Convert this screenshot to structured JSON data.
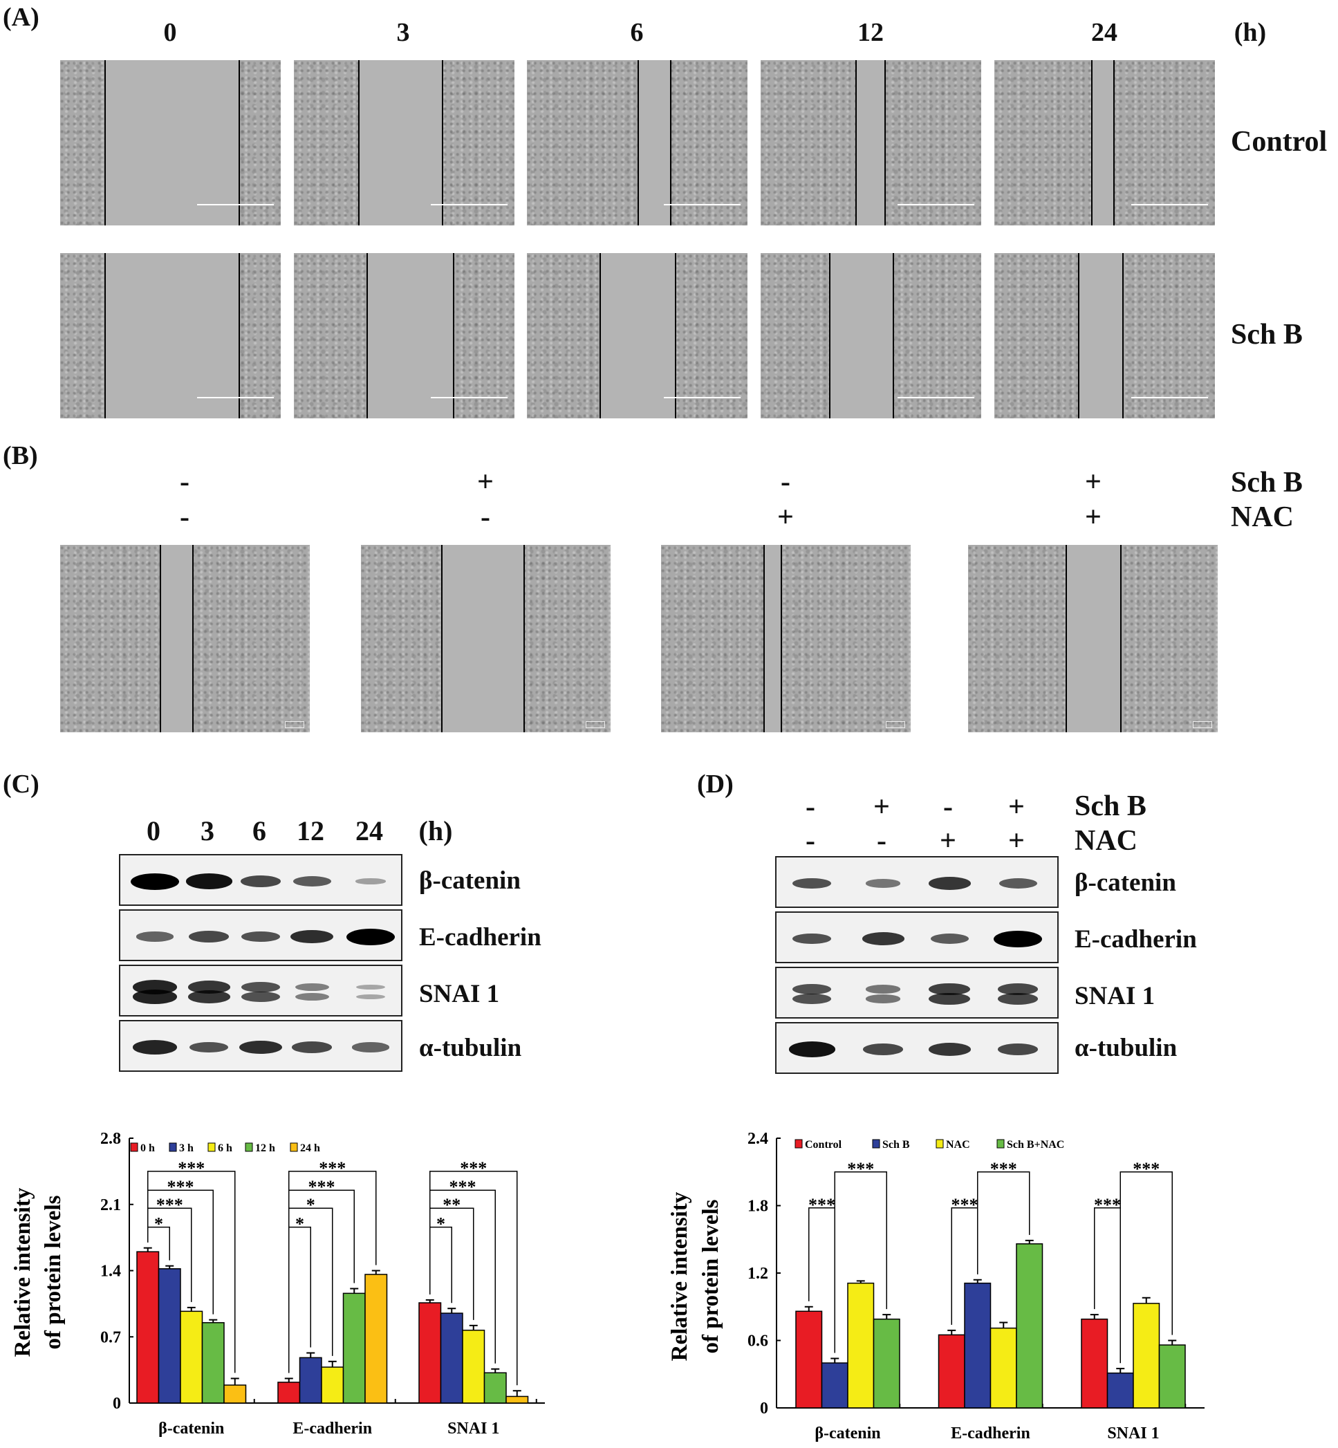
{
  "panelA": {
    "label": "(A)",
    "time_headers": [
      "0",
      "3",
      "6",
      "12",
      "24"
    ],
    "unit": "(h)",
    "rows": [
      "Control",
      "Sch B"
    ]
  },
  "panelB": {
    "label": "(B)",
    "row_labels": [
      "Sch B",
      "NAC"
    ],
    "sch_b_signs": [
      "-",
      "+",
      "-",
      "+"
    ],
    "nac_signs": [
      "-",
      "-",
      "+",
      "+"
    ]
  },
  "panelC": {
    "label": "(C)",
    "lanes": [
      "0",
      "3",
      "6",
      "12",
      "24"
    ],
    "unit": "(h)",
    "proteins": [
      "β-catenin",
      "E-cadherin",
      "SNAI 1",
      "α-tubulin"
    ]
  },
  "panelD": {
    "label": "(D)",
    "row_labels": [
      "Sch B",
      "NAC"
    ],
    "sch_b_signs": [
      "-",
      "+",
      "-",
      "+"
    ],
    "nac_signs": [
      "-",
      "-",
      "+",
      "+"
    ],
    "proteins": [
      "β-catenin",
      "E-cadherin",
      "SNAI 1",
      "α-tubulin"
    ]
  },
  "colors": {
    "red": "#e81c24",
    "blue": "#2e3f99",
    "yellow": "#f5ec15",
    "green": "#67bb45",
    "orange": "#fbbf14"
  },
  "chart_data": [
    {
      "type": "bar",
      "title": "",
      "ylabel": [
        "Relative intensity",
        "of protein levels"
      ],
      "xlabel": "",
      "ylim": [
        0,
        2.8
      ],
      "yticks": [
        "0",
        "0.7",
        "1.4",
        "2.1",
        "2.8"
      ],
      "grid": false,
      "legend": "top-left",
      "categories": [
        "β-catenin",
        "E-cadherin",
        "SNAI 1"
      ],
      "series": [
        {
          "name": "0 h",
          "color": "#e81c24",
          "values": [
            1.6,
            0.22,
            1.06
          ],
          "errors": [
            0.04,
            0.04,
            0.03
          ]
        },
        {
          "name": "3 h",
          "color": "#2e3f99",
          "values": [
            1.42,
            0.48,
            0.95
          ],
          "errors": [
            0.03,
            0.05,
            0.05
          ]
        },
        {
          "name": "6 h",
          "color": "#f5ec15",
          "values": [
            0.97,
            0.38,
            0.77
          ],
          "errors": [
            0.04,
            0.06,
            0.05
          ]
        },
        {
          "name": "12 h",
          "color": "#67bb45",
          "values": [
            0.85,
            1.16,
            0.32
          ],
          "errors": [
            0.03,
            0.05,
            0.04
          ]
        },
        {
          "name": "24 h",
          "color": "#fbbf14",
          "values": [
            0.19,
            1.36,
            0.07
          ],
          "errors": [
            0.07,
            0.04,
            0.06
          ]
        }
      ],
      "significance": [
        {
          "group": 0,
          "pairs": [
            [
              0,
              1,
              1.86,
              "*"
            ],
            [
              0,
              2,
              2.06,
              "***"
            ],
            [
              0,
              3,
              2.25,
              "***"
            ],
            [
              0,
              4,
              2.45,
              "***"
            ]
          ]
        },
        {
          "group": 1,
          "pairs": [
            [
              0,
              1,
              1.86,
              "*"
            ],
            [
              0,
              2,
              2.06,
              "*"
            ],
            [
              0,
              3,
              2.25,
              "***"
            ],
            [
              0,
              4,
              2.45,
              "***"
            ]
          ]
        },
        {
          "group": 2,
          "pairs": [
            [
              0,
              1,
              1.86,
              "*"
            ],
            [
              0,
              2,
              2.06,
              "**"
            ],
            [
              0,
              3,
              2.25,
              "***"
            ],
            [
              0,
              4,
              2.45,
              "***"
            ]
          ]
        }
      ]
    },
    {
      "type": "bar",
      "title": "",
      "ylabel": [
        "Relative intensity",
        "of protein levels"
      ],
      "xlabel": "",
      "ylim": [
        0,
        2.4
      ],
      "yticks": [
        "0",
        "0.6",
        "1.2",
        "1.8",
        "2.4"
      ],
      "grid": false,
      "legend": "top-left",
      "categories": [
        "β-catenin",
        "E-cadherin",
        "SNAI 1"
      ],
      "series": [
        {
          "name": "Control",
          "color": "#e81c24",
          "values": [
            0.86,
            0.65,
            0.79
          ],
          "errors": [
            0.04,
            0.04,
            0.04
          ]
        },
        {
          "name": "Sch B",
          "color": "#2e3f99",
          "values": [
            0.4,
            1.11,
            0.31
          ],
          "errors": [
            0.04,
            0.03,
            0.04
          ]
        },
        {
          "name": "NAC",
          "color": "#f5ec15",
          "values": [
            1.11,
            0.71,
            0.93
          ],
          "errors": [
            0.02,
            0.05,
            0.05
          ]
        },
        {
          "name": "Sch B+NAC",
          "color": "#67bb45",
          "values": [
            0.79,
            1.46,
            0.56
          ],
          "errors": [
            0.04,
            0.03,
            0.04
          ]
        }
      ],
      "significance": [
        {
          "group": 0,
          "pairs": [
            [
              0,
              1,
              1.78,
              "***"
            ],
            [
              1,
              3,
              2.1,
              "***"
            ]
          ]
        },
        {
          "group": 1,
          "pairs": [
            [
              0,
              1,
              1.78,
              "***"
            ],
            [
              1,
              3,
              2.1,
              "***"
            ]
          ]
        },
        {
          "group": 2,
          "pairs": [
            [
              0,
              1,
              1.78,
              "***"
            ],
            [
              1,
              3,
              2.1,
              "***"
            ]
          ]
        }
      ]
    }
  ]
}
